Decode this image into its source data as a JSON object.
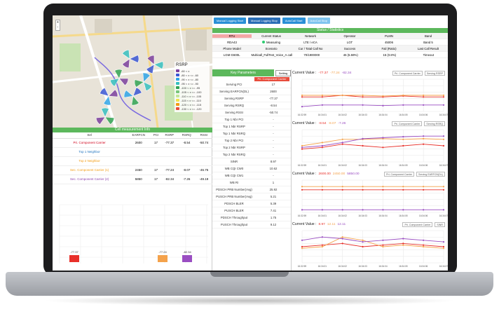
{
  "map": {
    "legend_title": "RSRP",
    "legend": [
      {
        "label": "-60 < x",
        "color": "#7b3f9e"
      },
      {
        "label": "-80 < x <= -60",
        "color": "#3a56d4"
      },
      {
        "label": "-90 < x <= -80",
        "color": "#2fa4e7"
      },
      {
        "label": "-95 < x <= -90",
        "color": "#36c0c0"
      },
      {
        "label": "-100 < x <= -95",
        "color": "#31a354"
      },
      {
        "label": "-105 < x <= -100",
        "color": "#78c679"
      },
      {
        "label": "-110 < x <= -105",
        "color": "#c2e699"
      },
      {
        "label": "-115 < x <= -110",
        "color": "#f2e34c"
      },
      {
        "label": "-120 < x <= -115",
        "color": "#f39c12"
      },
      {
        "label": "-130 < x <= -120",
        "color": "#e74c3c"
      }
    ],
    "zoom_in": "+",
    "zoom_out": "-"
  },
  "cell_info": {
    "title": "Cell measurement Info",
    "headers": [
      "Sel",
      "EARFCN",
      "PCI",
      "RSRP",
      "RSRQ",
      "RSSI"
    ],
    "rows": [
      {
        "sel": "Pri. Component Carrier",
        "earfcn": "2600",
        "pci": "17",
        "rsrp": "-77.37",
        "rsrq": "-8.54",
        "rssi": "-50.74",
        "cls": "r-pc"
      },
      {
        "sel": "Top 1 Neighbor",
        "earfcn": "",
        "pci": "",
        "rsrp": "",
        "rsrq": "",
        "rssi": "",
        "cls": "r-n1"
      },
      {
        "sel": "Top 2 Neighbor",
        "earfcn": "",
        "pci": "",
        "rsrp": "",
        "rsrq": "",
        "rssi": "",
        "cls": "r-n2"
      },
      {
        "sel": "Sec. Component Carrier (1)",
        "earfcn": "2450",
        "pci": "17",
        "rsrp": "-77.24",
        "rsrq": "-8.07",
        "rssi": "-46.75",
        "cls": "r-s1"
      },
      {
        "sel": "Sec. Component Carrier (2)",
        "earfcn": "5850",
        "pci": "17",
        "rsrp": "-82.34",
        "rsrq": "-7.26",
        "rssi": "-49.19",
        "cls": "r-s2"
      }
    ]
  },
  "bar_chart": {
    "bars": [
      {
        "label": "-77.37",
        "color": "#e8302a"
      },
      {
        "label": "-77.24",
        "color": "#f4a24b"
      },
      {
        "label": "-82.34",
        "color": "#9a4ec2"
      }
    ]
  },
  "toolbar": {
    "buttons": [
      {
        "label": "Manual Logging Start",
        "color": "#2a8fd6"
      },
      {
        "label": "Manual Logging Stop",
        "color": "#2a6db5"
      },
      {
        "label": "AutoCall Start",
        "color": "#2a8fd6"
      },
      {
        "label": "AutoCall Stop",
        "color": "#7fc4ef"
      }
    ]
  },
  "status": {
    "title": "Status / Statistics",
    "header1": [
      "RTU",
      "Current Status",
      "Network",
      "Operator",
      "PLMN",
      "Band"
    ],
    "row1": [
      "RDA43",
      "Measuring",
      "LTE / eCA",
      "LGT",
      "45006",
      "Band 5"
    ],
    "header2": [
      "Phone Model",
      "Scenario",
      "Cur / Total Call No",
      "Success",
      "Fail (Ratio)",
      "Last Call Result"
    ],
    "row2": [
      "LGM-G600L",
      "Multicall_FullTest_Voice_A.call",
      "70/1900000",
      "46 (5.59%)",
      "15 (0.8%)",
      "Timeout"
    ]
  },
  "key_params": {
    "title": "Key Parameters",
    "setting": "Setting",
    "carrier_tag": "Pri. Component Carrier",
    "rows": [
      {
        "k": "Serving PCI",
        "v": "17"
      },
      {
        "k": "Serving EARFCN(DL)",
        "v": "2600"
      },
      {
        "k": "Serving RSRP",
        "v": "-77.37"
      },
      {
        "k": "Serving RSRQ",
        "v": "-8.54"
      },
      {
        "k": "Serving RSSI",
        "v": "-50.74"
      },
      {
        "k": "Top 1 Nbr PCI",
        "v": "-"
      },
      {
        "k": "Top 1 Nbr RSRP",
        "v": "-"
      },
      {
        "k": "Top 1 Nbr RSRQ",
        "v": "-"
      },
      {
        "k": "Top 2 Nbr PCI",
        "v": "-"
      },
      {
        "k": "Top 2 Nbr RSRP",
        "v": "-"
      },
      {
        "k": "Top 2 Nbr RSRQ",
        "v": "-"
      },
      {
        "k": "SINR",
        "v": "8.97"
      },
      {
        "k": "WB CQI CW0",
        "v": "10.62"
      },
      {
        "k": "WB CQI CW1",
        "v": "-"
      },
      {
        "k": "WB RI",
        "v": "1"
      },
      {
        "k": "PDSCH PRB Number(Avg)",
        "v": "25.92"
      },
      {
        "k": "PUSCH PRB Number(Avg)",
        "v": "5.21"
      },
      {
        "k": "PDSCH BLER",
        "v": "5.39"
      },
      {
        "k": "PUSCH BLER",
        "v": "7.41"
      },
      {
        "k": "PDSCH Throughput",
        "v": "1.75"
      },
      {
        "k": "PUSCH Throughput",
        "v": "9.12"
      }
    ]
  },
  "trend_charts": [
    {
      "label": "Current Value :",
      "values": [
        "-77.37",
        "-77.24",
        "-82.34"
      ],
      "dd1": "Pri. Component Carrier",
      "dd2": "Serving RSRP"
    },
    {
      "label": "Current Value :",
      "values": [
        "-8.54",
        "-8.07",
        "-7.26"
      ],
      "dd1": "Pri. Component Carrier",
      "dd2": "Serving RSRQ"
    },
    {
      "label": "Current Value :",
      "values": [
        "2600.00",
        "2450.00",
        "5850.00"
      ],
      "dd1": "Pri. Component Carrier",
      "dd2": "Serving EARFCN(DL)"
    },
    {
      "label": "Current Value :",
      "values": [
        "8.97",
        "12.11",
        "12.11"
      ],
      "dd1": "Pri. Component Carrier",
      "dd2": "SINR"
    }
  ],
  "time_ticks": [
    "16:32:59",
    "16:34:01",
    "16:34:02",
    "16:34:03",
    "16:34:04",
    "16:34:05",
    "16:34:06",
    "16:34:07"
  ],
  "series_colors": [
    "#e8302a",
    "#f4a24b",
    "#9a4ec2"
  ]
}
